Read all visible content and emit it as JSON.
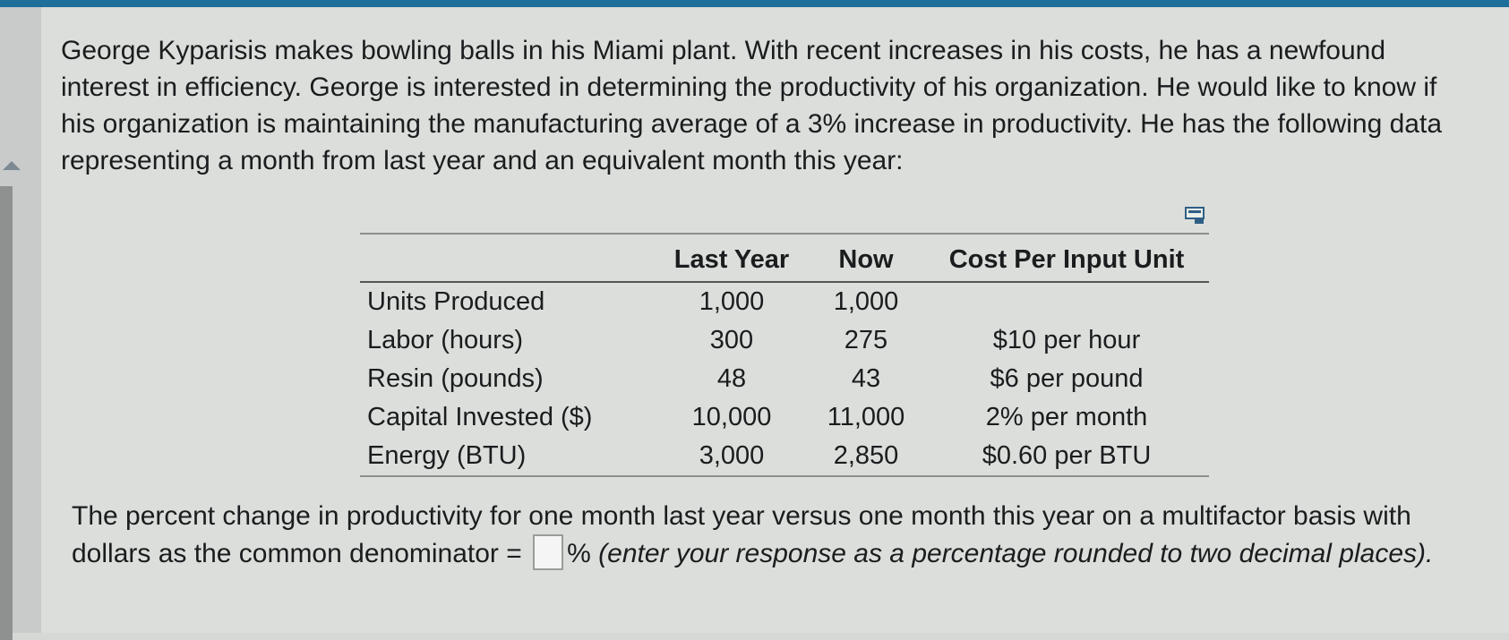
{
  "problem": {
    "prompt": "George Kyparisis makes bowling balls in his Miami plant. With recent increases in his costs, he has a newfound interest in efficiency. George is interested in determining the productivity of his organization. He would like to know if his organization is maintaining the manufacturing average of a 3% increase in productivity. He has the following data representing a month from last year and an equivalent month this year:"
  },
  "table": {
    "headers": [
      "",
      "Last Year",
      "Now",
      "Cost Per Input Unit"
    ],
    "rows": [
      {
        "label": "Units Produced",
        "last_year": "1,000",
        "now": "1,000",
        "cost": ""
      },
      {
        "label": "Labor (hours)",
        "last_year": "300",
        "now": "275",
        "cost": "$10 per hour"
      },
      {
        "label": "Resin (pounds)",
        "last_year": "48",
        "now": "43",
        "cost": "$6 per pound"
      },
      {
        "label": "Capital Invested ($)",
        "last_year": "10,000",
        "now": "11,000",
        "cost": "2% per month"
      },
      {
        "label": "Energy (BTU)",
        "last_year": "3,000",
        "now": "2,850",
        "cost": "$0.60 per BTU"
      }
    ]
  },
  "question": {
    "text_before": "The percent change in productivity for one month last year versus one month this year on a multifactor basis with dollars as the common denominator =",
    "answer_value": "",
    "unit": "%",
    "instruction": "(enter your response as a percentage rounded to two decimal places)."
  },
  "icons": {
    "popout": "popout-icon",
    "collapse": "collapse-arrow-icon"
  },
  "colors": {
    "accent_bar": "#1e6f9a",
    "background": "#dcdedc",
    "text": "#1b1c1d"
  }
}
